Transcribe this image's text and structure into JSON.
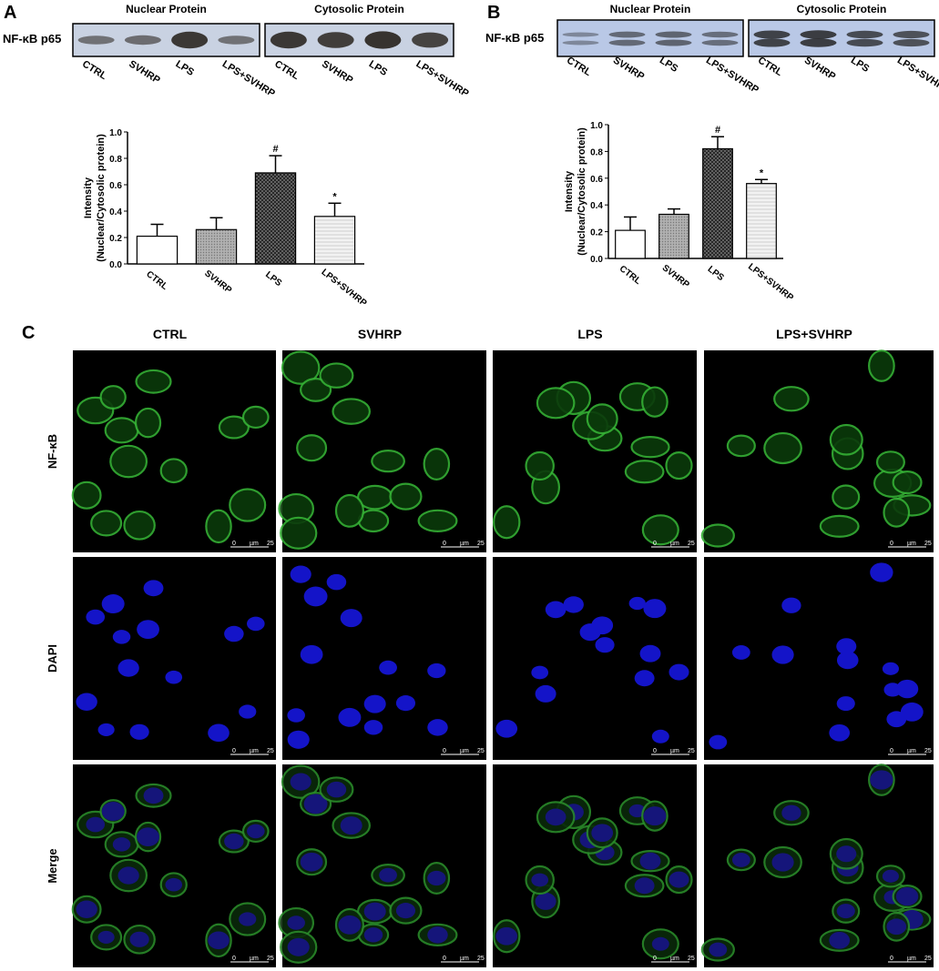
{
  "panel_labels": [
    "A",
    "B",
    "C"
  ],
  "blots": [
    {
      "row_label": "NF-κB p65",
      "groups": [
        "Nuclear Protein",
        "Cytosolic Protein"
      ],
      "lanes": [
        "CTRL",
        "SVHRP",
        "LPS",
        "LPS+SVHRP"
      ]
    },
    {
      "row_label": "NF-κB p65",
      "groups": [
        "Nuclear Protein",
        "Cytosolic Protein"
      ],
      "lanes": [
        "CTRL",
        "SVHRP",
        "LPS",
        "LPS+SVHRP"
      ]
    }
  ],
  "chart_data": [
    {
      "type": "bar",
      "ylabel": [
        "Intensity",
        "(Nuclear/Cytosolic protein)"
      ],
      "categories": [
        "CTRL",
        "SVHRP",
        "LPS",
        "LPS+SVHRP"
      ],
      "values": [
        0.21,
        0.26,
        0.69,
        0.36
      ],
      "errors": [
        0.09,
        0.09,
        0.13,
        0.1
      ],
      "annotations": [
        null,
        null,
        "#",
        "*"
      ],
      "colors": [
        "#ffffff",
        "#a0a0a0",
        "#555555",
        "#e4e4e4"
      ],
      "ylim": [
        0,
        1
      ],
      "yticks": [
        {
          "value": 0,
          "label": "0.0"
        },
        0.2,
        0.4,
        0.6,
        0.8,
        {
          "value": 1,
          "label": "1.0"
        }
      ]
    },
    {
      "type": "bar",
      "ylabel": [
        "Intensity",
        "(Nuclear/Cytosolic protein)"
      ],
      "categories": [
        "CTRL",
        "SVHRP",
        "LPS",
        "LPS+SVHRP"
      ],
      "values": [
        0.21,
        0.33,
        0.82,
        0.56
      ],
      "errors": [
        0.1,
        0.04,
        0.09,
        0.03
      ],
      "annotations": [
        null,
        null,
        "#",
        "*"
      ],
      "colors": [
        "#ffffff",
        "#a0a0a0",
        "#555555",
        "#e4e4e4"
      ],
      "ylim": [
        0,
        1
      ],
      "yticks": [
        {
          "value": 0,
          "label": "0.0"
        },
        0.2,
        0.4,
        0.6,
        0.8,
        {
          "value": 1,
          "label": "1.0"
        }
      ]
    }
  ],
  "microscopy": {
    "columns": [
      "CTRL",
      "SVHRP",
      "LPS",
      "LPS+SVHRP"
    ],
    "rows": [
      "NF-κB",
      "DAPI",
      "Merge"
    ],
    "scale_bar": [
      "0",
      "µm",
      "25"
    ]
  }
}
